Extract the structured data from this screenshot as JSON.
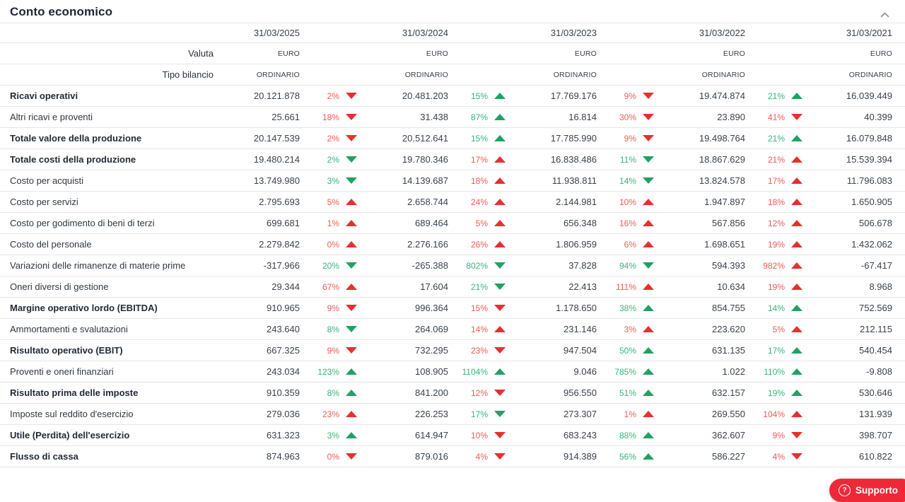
{
  "header": {
    "title": "Conto economico",
    "collapse_icon": "chevron-up"
  },
  "table": {
    "columns": [
      "31/03/2025",
      "31/03/2024",
      "31/03/2023",
      "31/03/2022",
      "31/03/2021"
    ],
    "meta_rows": [
      {
        "label": "Valuta",
        "values": [
          "EURO",
          "EURO",
          "EURO",
          "EURO",
          "EURO"
        ]
      },
      {
        "label": "Tipo bilancio",
        "values": [
          "ORDINARIO",
          "ORDINARIO",
          "ORDINARIO",
          "ORDINARIO",
          "ORDINARIO"
        ]
      }
    ],
    "rows": [
      {
        "label": "Ricavi operativi",
        "bold": true,
        "cells": [
          {
            "value": "20.121.878",
            "pct": "2%",
            "dir": "down",
            "tone": "neg"
          },
          {
            "value": "20.481.203",
            "pct": "15%",
            "dir": "up",
            "tone": "pos"
          },
          {
            "value": "17.769.176",
            "pct": "9%",
            "dir": "down",
            "tone": "neg"
          },
          {
            "value": "19.474.874",
            "pct": "21%",
            "dir": "up",
            "tone": "pos"
          },
          {
            "value": "16.039.449"
          }
        ]
      },
      {
        "label": "Altri ricavi e proventi",
        "bold": false,
        "cells": [
          {
            "value": "25.661",
            "pct": "18%",
            "dir": "down",
            "tone": "neg"
          },
          {
            "value": "31.438",
            "pct": "87%",
            "dir": "up",
            "tone": "pos"
          },
          {
            "value": "16.814",
            "pct": "30%",
            "dir": "down",
            "tone": "neg"
          },
          {
            "value": "23.890",
            "pct": "41%",
            "dir": "down",
            "tone": "neg"
          },
          {
            "value": "40.399"
          }
        ]
      },
      {
        "label": "Totale valore della produzione",
        "bold": true,
        "cells": [
          {
            "value": "20.147.539",
            "pct": "2%",
            "dir": "down",
            "tone": "neg"
          },
          {
            "value": "20.512.641",
            "pct": "15%",
            "dir": "up",
            "tone": "pos"
          },
          {
            "value": "17.785.990",
            "pct": "9%",
            "dir": "down",
            "tone": "neg"
          },
          {
            "value": "19.498.764",
            "pct": "21%",
            "dir": "up",
            "tone": "pos"
          },
          {
            "value": "16.079.848"
          }
        ]
      },
      {
        "label": "Totale costi della produzione",
        "bold": true,
        "cells": [
          {
            "value": "19.480.214",
            "pct": "2%",
            "dir": "down",
            "tone": "pos"
          },
          {
            "value": "19.780.346",
            "pct": "17%",
            "dir": "up",
            "tone": "neg"
          },
          {
            "value": "16.838.486",
            "pct": "11%",
            "dir": "down",
            "tone": "pos"
          },
          {
            "value": "18.867.629",
            "pct": "21%",
            "dir": "up",
            "tone": "neg"
          },
          {
            "value": "15.539.394"
          }
        ]
      },
      {
        "label": "Costo per acquisti",
        "bold": false,
        "cells": [
          {
            "value": "13.749.980",
            "pct": "3%",
            "dir": "down",
            "tone": "pos"
          },
          {
            "value": "14.139.687",
            "pct": "18%",
            "dir": "up",
            "tone": "neg"
          },
          {
            "value": "11.938.811",
            "pct": "14%",
            "dir": "down",
            "tone": "pos"
          },
          {
            "value": "13.824.578",
            "pct": "17%",
            "dir": "up",
            "tone": "neg"
          },
          {
            "value": "11.796.083"
          }
        ]
      },
      {
        "label": "Costo per servizi",
        "bold": false,
        "cells": [
          {
            "value": "2.795.693",
            "pct": "5%",
            "dir": "up",
            "tone": "neg"
          },
          {
            "value": "2.658.744",
            "pct": "24%",
            "dir": "up",
            "tone": "neg"
          },
          {
            "value": "2.144.981",
            "pct": "10%",
            "dir": "up",
            "tone": "neg"
          },
          {
            "value": "1.947.897",
            "pct": "18%",
            "dir": "up",
            "tone": "neg"
          },
          {
            "value": "1.650.905"
          }
        ]
      },
      {
        "label": "Costo per godimento di beni di terzi",
        "bold": false,
        "cells": [
          {
            "value": "699.681",
            "pct": "1%",
            "dir": "up",
            "tone": "neg"
          },
          {
            "value": "689.464",
            "pct": "5%",
            "dir": "up",
            "tone": "neg"
          },
          {
            "value": "656.348",
            "pct": "16%",
            "dir": "up",
            "tone": "neg"
          },
          {
            "value": "567.856",
            "pct": "12%",
            "dir": "up",
            "tone": "neg"
          },
          {
            "value": "506.678"
          }
        ]
      },
      {
        "label": "Costo del personale",
        "bold": false,
        "cells": [
          {
            "value": "2.279.842",
            "pct": "0%",
            "dir": "up",
            "tone": "neg"
          },
          {
            "value": "2.276.166",
            "pct": "26%",
            "dir": "up",
            "tone": "neg"
          },
          {
            "value": "1.806.959",
            "pct": "6%",
            "dir": "up",
            "tone": "neg"
          },
          {
            "value": "1.698.651",
            "pct": "19%",
            "dir": "up",
            "tone": "neg"
          },
          {
            "value": "1.432.062"
          }
        ]
      },
      {
        "label": "Variazioni delle rimanenze di materie prime",
        "bold": false,
        "cells": [
          {
            "value": "-317.966",
            "pct": "20%",
            "dir": "down",
            "tone": "pos"
          },
          {
            "value": "-265.388",
            "pct": "802%",
            "dir": "down",
            "tone": "pos"
          },
          {
            "value": "37.828",
            "pct": "94%",
            "dir": "down",
            "tone": "pos"
          },
          {
            "value": "594.393",
            "pct": "982%",
            "dir": "up",
            "tone": "neg"
          },
          {
            "value": "-67.417"
          }
        ]
      },
      {
        "label": "Oneri diversi di gestione",
        "bold": false,
        "cells": [
          {
            "value": "29.344",
            "pct": "67%",
            "dir": "up",
            "tone": "neg"
          },
          {
            "value": "17.604",
            "pct": "21%",
            "dir": "down",
            "tone": "pos"
          },
          {
            "value": "22.413",
            "pct": "111%",
            "dir": "up",
            "tone": "neg"
          },
          {
            "value": "10.634",
            "pct": "19%",
            "dir": "up",
            "tone": "neg"
          },
          {
            "value": "8.968"
          }
        ]
      },
      {
        "label": "Margine operativo lordo (EBITDA)",
        "bold": true,
        "cells": [
          {
            "value": "910.965",
            "pct": "9%",
            "dir": "down",
            "tone": "neg"
          },
          {
            "value": "996.364",
            "pct": "15%",
            "dir": "down",
            "tone": "neg"
          },
          {
            "value": "1.178.650",
            "pct": "38%",
            "dir": "up",
            "tone": "pos"
          },
          {
            "value": "854.755",
            "pct": "14%",
            "dir": "up",
            "tone": "pos"
          },
          {
            "value": "752.569"
          }
        ]
      },
      {
        "label": "Ammortamenti e svalutazioni",
        "bold": false,
        "cells": [
          {
            "value": "243.640",
            "pct": "8%",
            "dir": "down",
            "tone": "pos"
          },
          {
            "value": "264.069",
            "pct": "14%",
            "dir": "up",
            "tone": "neg"
          },
          {
            "value": "231.146",
            "pct": "3%",
            "dir": "up",
            "tone": "neg"
          },
          {
            "value": "223.620",
            "pct": "5%",
            "dir": "up",
            "tone": "neg"
          },
          {
            "value": "212.115"
          }
        ]
      },
      {
        "label": "Risultato operativo (EBIT)",
        "bold": true,
        "cells": [
          {
            "value": "667.325",
            "pct": "9%",
            "dir": "down",
            "tone": "neg"
          },
          {
            "value": "732.295",
            "pct": "23%",
            "dir": "down",
            "tone": "neg"
          },
          {
            "value": "947.504",
            "pct": "50%",
            "dir": "up",
            "tone": "pos"
          },
          {
            "value": "631.135",
            "pct": "17%",
            "dir": "up",
            "tone": "pos"
          },
          {
            "value": "540.454"
          }
        ]
      },
      {
        "label": "Proventi e oneri finanziari",
        "bold": false,
        "cells": [
          {
            "value": "243.034",
            "pct": "123%",
            "dir": "up",
            "tone": "pos"
          },
          {
            "value": "108.905",
            "pct": "1104%",
            "dir": "up",
            "tone": "pos"
          },
          {
            "value": "9.046",
            "pct": "785%",
            "dir": "up",
            "tone": "pos"
          },
          {
            "value": "1.022",
            "pct": "110%",
            "dir": "up",
            "tone": "pos"
          },
          {
            "value": "-9.808"
          }
        ]
      },
      {
        "label": "Risultato prima delle imposte",
        "bold": true,
        "cells": [
          {
            "value": "910.359",
            "pct": "8%",
            "dir": "up",
            "tone": "pos"
          },
          {
            "value": "841.200",
            "pct": "12%",
            "dir": "down",
            "tone": "neg"
          },
          {
            "value": "956.550",
            "pct": "51%",
            "dir": "up",
            "tone": "pos"
          },
          {
            "value": "632.157",
            "pct": "19%",
            "dir": "up",
            "tone": "pos"
          },
          {
            "value": "530.646"
          }
        ]
      },
      {
        "label": "Imposte sul reddito d'esercizio",
        "bold": false,
        "cells": [
          {
            "value": "279.036",
            "pct": "23%",
            "dir": "up",
            "tone": "neg"
          },
          {
            "value": "226.253",
            "pct": "17%",
            "dir": "down",
            "tone": "pos"
          },
          {
            "value": "273.307",
            "pct": "1%",
            "dir": "up",
            "tone": "neg"
          },
          {
            "value": "269.550",
            "pct": "104%",
            "dir": "up",
            "tone": "neg"
          },
          {
            "value": "131.939"
          }
        ]
      },
      {
        "label": "Utile (Perdita) dell'esercizio",
        "bold": true,
        "cells": [
          {
            "value": "631.323",
            "pct": "3%",
            "dir": "up",
            "tone": "pos"
          },
          {
            "value": "614.947",
            "pct": "10%",
            "dir": "down",
            "tone": "neg"
          },
          {
            "value": "683.243",
            "pct": "88%",
            "dir": "up",
            "tone": "pos"
          },
          {
            "value": "362.607",
            "pct": "9%",
            "dir": "down",
            "tone": "neg"
          },
          {
            "value": "398.707"
          }
        ]
      },
      {
        "label": "Flusso di cassa",
        "bold": true,
        "cells": [
          {
            "value": "874.963",
            "pct": "0%",
            "dir": "down",
            "tone": "neg"
          },
          {
            "value": "879.016",
            "pct": "4%",
            "dir": "down",
            "tone": "neg"
          },
          {
            "value": "914.389",
            "pct": "56%",
            "dir": "up",
            "tone": "pos"
          },
          {
            "value": "586.227",
            "pct": "4%",
            "dir": "down",
            "tone": "neg"
          },
          {
            "value": "610.822"
          }
        ]
      }
    ]
  },
  "support_button": {
    "label": "Supporto",
    "icon": "question-circle-icon"
  },
  "colors": {
    "positive_text": "#35b57c",
    "positive_arrow": "#1fa263",
    "negative_text": "#f15b55",
    "negative_arrow": "#e82f2f",
    "support_red": "#ef2838",
    "divider": "#e3e6ea",
    "title_text": "#1d2633"
  }
}
